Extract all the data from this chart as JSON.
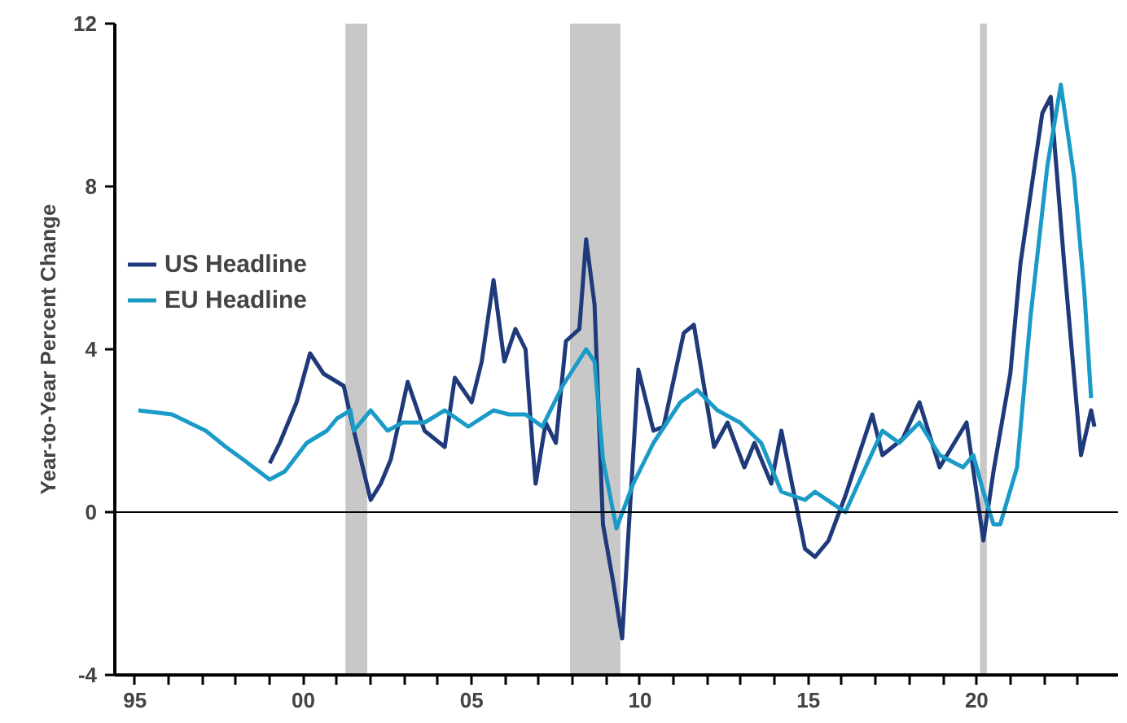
{
  "chart_data": {
    "type": "line",
    "ylabel": "Year-to-Year Percent Change",
    "xlim": [
      1994.4,
      2024.2
    ],
    "xticks": [
      {
        "value": 1995,
        "label": "95"
      },
      {
        "value": 1996,
        "label": null
      },
      {
        "value": 1997,
        "label": null
      },
      {
        "value": 1998,
        "label": null
      },
      {
        "value": 1999,
        "label": null
      },
      {
        "value": 2000,
        "label": "00"
      },
      {
        "value": 2001,
        "label": null
      },
      {
        "value": 2002,
        "label": null
      },
      {
        "value": 2003,
        "label": null
      },
      {
        "value": 2004,
        "label": null
      },
      {
        "value": 2005,
        "label": "05"
      },
      {
        "value": 2006,
        "label": null
      },
      {
        "value": 2007,
        "label": null
      },
      {
        "value": 2008,
        "label": null
      },
      {
        "value": 2009,
        "label": null
      },
      {
        "value": 2010,
        "label": "10"
      },
      {
        "value": 2011,
        "label": null
      },
      {
        "value": 2012,
        "label": null
      },
      {
        "value": 2013,
        "label": null
      },
      {
        "value": 2014,
        "label": null
      },
      {
        "value": 2015,
        "label": "15"
      },
      {
        "value": 2016,
        "label": null
      },
      {
        "value": 2017,
        "label": null
      },
      {
        "value": 2018,
        "label": null
      },
      {
        "value": 2019,
        "label": null
      },
      {
        "value": 2020,
        "label": "20"
      },
      {
        "value": 2021,
        "label": null
      },
      {
        "value": 2022,
        "label": null
      },
      {
        "value": 2023,
        "label": null
      }
    ],
    "ylim": [
      -4,
      12
    ],
    "yticks": [
      -4,
      0,
      4,
      8,
      12
    ],
    "grid": false,
    "legend": "left",
    "line_style": "solid",
    "ref_lines": [
      {
        "axis": "y",
        "value": 0,
        "color": "#000000"
      }
    ],
    "bands": [
      {
        "axis": "x",
        "from": 2001.25,
        "to": 2001.9,
        "color": "#c8c8c8"
      },
      {
        "axis": "x",
        "from": 2007.92,
        "to": 2009.42,
        "color": "#c8c8c8"
      },
      {
        "axis": "x",
        "from": 2020.1,
        "to": 2020.3,
        "color": "#c8c8c8"
      }
    ],
    "series": [
      {
        "name": "US Headline",
        "color": "#1f3a7a",
        "x": [
          1999.0,
          1999.3,
          1999.8,
          2000.2,
          2000.6,
          2001.2,
          2001.5,
          2002.0,
          2002.3,
          2002.6,
          2003.1,
          2003.6,
          2004.2,
          2004.5,
          2005.0,
          2005.3,
          2005.65,
          2005.97,
          2006.3,
          2006.6,
          2006.8,
          2006.9,
          2007.2,
          2007.5,
          2007.8,
          2008.2,
          2008.4,
          2008.65,
          2008.9,
          2009.2,
          2009.47,
          2009.95,
          2010.4,
          2010.7,
          2011.3,
          2011.6,
          2012.2,
          2012.6,
          2013.1,
          2013.4,
          2013.9,
          2014.2,
          2014.9,
          2015.2,
          2015.6,
          2016.1,
          2016.9,
          2017.2,
          2017.8,
          2018.3,
          2018.9,
          2019.7,
          2020.2,
          2020.5,
          2021.0,
          2021.3,
          2021.95,
          2022.2,
          2022.6,
          2023.1,
          2023.4,
          2023.5
        ],
        "values": [
          1.2,
          1.7,
          2.7,
          3.9,
          3.4,
          3.1,
          2.0,
          0.3,
          0.7,
          1.3,
          3.2,
          2.0,
          1.6,
          3.3,
          2.7,
          3.7,
          5.7,
          3.7,
          4.5,
          4.0,
          1.7,
          0.7,
          2.2,
          1.7,
          4.2,
          4.5,
          6.7,
          5.1,
          -0.3,
          -1.7,
          -3.1,
          3.5,
          2.0,
          2.1,
          4.4,
          4.6,
          1.6,
          2.2,
          1.1,
          1.7,
          0.7,
          2.0,
          -0.9,
          -1.1,
          -0.7,
          0.4,
          2.4,
          1.4,
          1.8,
          2.7,
          1.1,
          2.2,
          -0.7,
          1.0,
          3.4,
          6.1,
          9.8,
          10.2,
          6.1,
          1.4,
          2.5,
          2.1
        ]
      },
      {
        "name": "EU Headline",
        "color": "#1a9bc7",
        "x": [
          1995.1,
          1996.1,
          1997.1,
          1997.7,
          1998.2,
          1999.0,
          1999.45,
          2000.1,
          2000.7,
          2001.0,
          2001.4,
          2001.5,
          2002.0,
          2002.5,
          2002.95,
          2003.6,
          2004.2,
          2004.9,
          2005.65,
          2006.1,
          2006.6,
          2007.1,
          2007.7,
          2008.4,
          2008.65,
          2008.9,
          2009.3,
          2009.8,
          2010.4,
          2011.2,
          2011.7,
          2012.3,
          2012.97,
          2013.6,
          2014.2,
          2014.9,
          2015.2,
          2016.1,
          2016.7,
          2017.2,
          2017.7,
          2018.3,
          2018.9,
          2019.6,
          2019.9,
          2020.2,
          2020.5,
          2020.7,
          2021.2,
          2021.6,
          2022.1,
          2022.5,
          2022.9,
          2023.2,
          2023.4
        ],
        "values": [
          2.5,
          2.4,
          2.0,
          1.6,
          1.3,
          0.8,
          1.0,
          1.7,
          2.0,
          2.3,
          2.5,
          2.0,
          2.5,
          2.0,
          2.2,
          2.2,
          2.5,
          2.1,
          2.5,
          2.4,
          2.4,
          2.1,
          3.1,
          4.0,
          3.7,
          1.3,
          -0.4,
          0.7,
          1.7,
          2.7,
          3.0,
          2.5,
          2.2,
          1.7,
          0.5,
          0.3,
          0.5,
          0.0,
          1.1,
          2.0,
          1.7,
          2.2,
          1.4,
          1.1,
          1.4,
          0.5,
          -0.3,
          -0.3,
          1.1,
          4.8,
          8.5,
          10.5,
          8.2,
          5.4,
          2.8
        ]
      }
    ]
  }
}
